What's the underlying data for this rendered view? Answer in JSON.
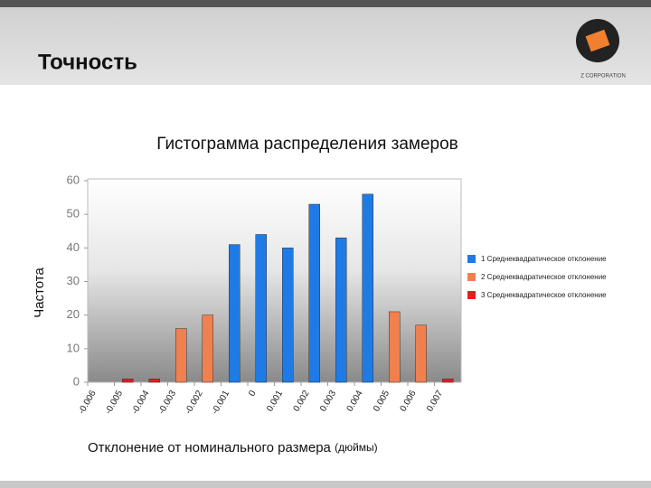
{
  "header": {
    "title": "Точность",
    "logo": "Z CORPORATION"
  },
  "chart_data": {
    "type": "bar",
    "title": "Гистограмма распределения замеров",
    "ylabel": "Частота",
    "xlabel": "Отклонение от номинального размера",
    "xlabel_unit": "(дюймы)",
    "categories": [
      "-0.006",
      "-0.005",
      "-0.004",
      "-0.003",
      "-0.002",
      "-0.001",
      "0",
      "0.001",
      "0.002",
      "0.003",
      "0.004",
      "0.005",
      "0.006",
      "0.007"
    ],
    "series": [
      {
        "name": "1 Среднеквадратическое отклонение",
        "color": "#1e7be6",
        "values": [
          null,
          null,
          null,
          null,
          null,
          41,
          44,
          40,
          53,
          43,
          56,
          null,
          null,
          null
        ]
      },
      {
        "name": "2 Среднеквадратическое отклонение",
        "color": "#f08050",
        "values": [
          null,
          null,
          null,
          16,
          20,
          null,
          null,
          null,
          null,
          null,
          null,
          21,
          17,
          null
        ]
      },
      {
        "name": "3 Среднеквадратическое отклонение",
        "color": "#e02020",
        "values": [
          null,
          1,
          1,
          null,
          null,
          null,
          null,
          null,
          null,
          null,
          null,
          null,
          null,
          1
        ]
      }
    ],
    "ylim": [
      0,
      60
    ],
    "yticks": [
      0,
      10,
      20,
      30,
      40,
      50,
      60
    ],
    "legend": "right"
  }
}
